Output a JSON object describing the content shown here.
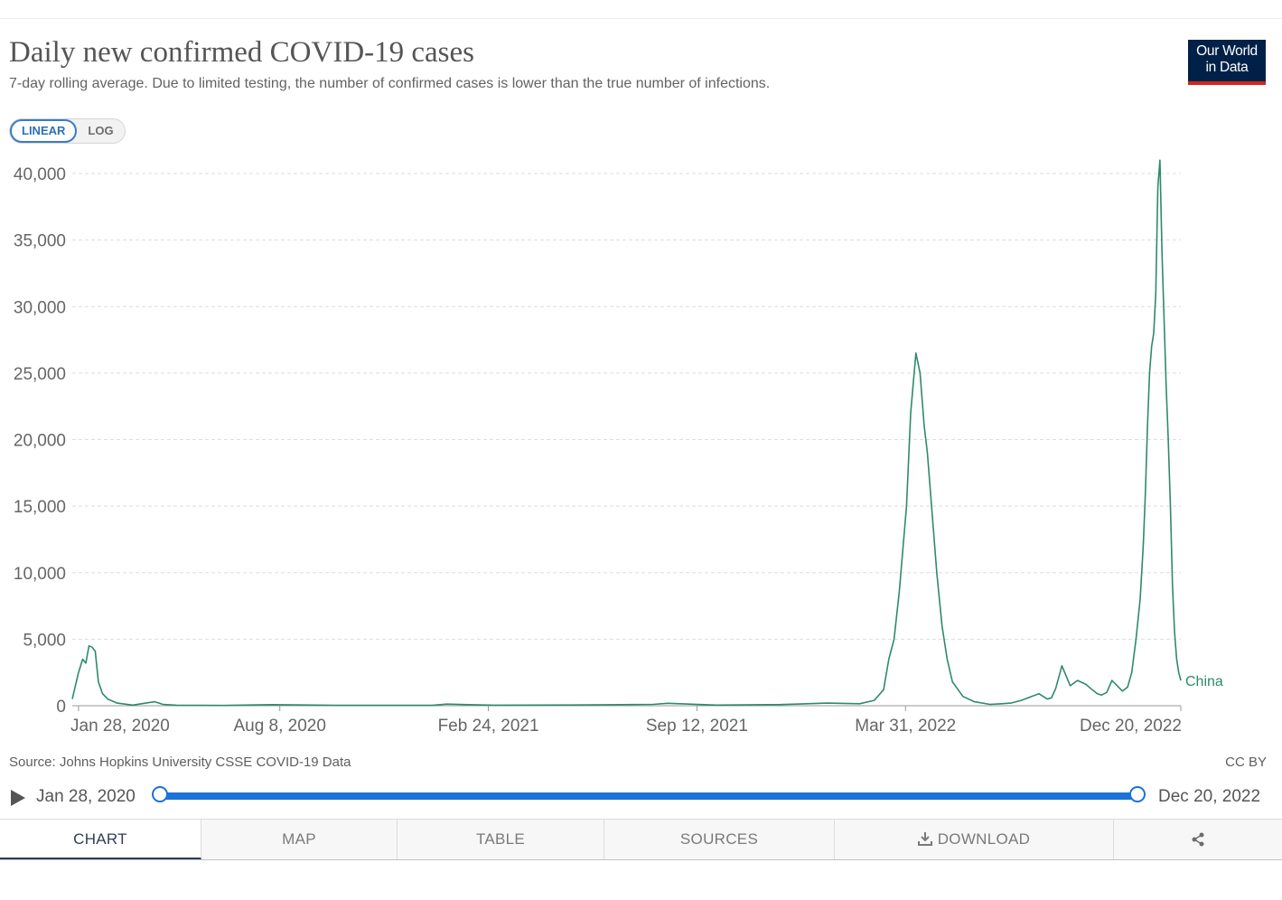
{
  "header": {
    "title": "Daily new confirmed COVID-19 cases",
    "subtitle": "7-day rolling average. Due to limited testing, the number of confirmed cases is lower than the true number of infections.",
    "logo_line1": "Our World",
    "logo_line2": "in Data"
  },
  "scale_toggle": {
    "linear": "LINEAR",
    "log": "LOG",
    "selected": "LINEAR"
  },
  "footer": {
    "source": "Source: Johns Hopkins University CSSE COVID-19 Data",
    "license": "CC BY"
  },
  "timeline": {
    "start": "Jan 28, 2020",
    "end": "Dec 20, 2022"
  },
  "tabs": {
    "chart": "CHART",
    "map": "MAP",
    "table": "TABLE",
    "sources": "SOURCES",
    "download": "DOWNLOAD",
    "share_icon": "share-icon",
    "download_icon": "download-icon"
  },
  "colors": {
    "series": "#2e8a6a",
    "accent": "#1a73d6",
    "logo_bg": "#002147",
    "logo_bar": "#ce261e"
  },
  "chart_data": {
    "type": "line",
    "ylim": [
      0,
      40000
    ],
    "yticks": [
      0,
      5000,
      10000,
      15000,
      20000,
      25000,
      30000,
      35000,
      40000
    ],
    "ytick_labels": [
      "0",
      "5,000",
      "10,000",
      "15,000",
      "20,000",
      "25,000",
      "30,000",
      "35,000",
      "40,000"
    ],
    "xlim": [
      "2020-01-22",
      "2022-12-20"
    ],
    "xticks": [
      "2020-01-28",
      "2020-08-08",
      "2021-02-24",
      "2021-09-12",
      "2022-03-31",
      "2022-12-20"
    ],
    "xtick_labels": [
      "Jan 28, 2020",
      "Aug 8, 2020",
      "Feb 24, 2021",
      "Sep 12, 2021",
      "Mar 31, 2022",
      "Dec 20, 2022"
    ],
    "grid": true,
    "series": [
      {
        "name": "China",
        "x": [
          "2020-01-22",
          "2020-01-28",
          "2020-02-01",
          "2020-02-04",
          "2020-02-07",
          "2020-02-10",
          "2020-02-13",
          "2020-02-16",
          "2020-02-20",
          "2020-02-25",
          "2020-03-05",
          "2020-03-20",
          "2020-04-10",
          "2020-04-18",
          "2020-05-01",
          "2020-06-15",
          "2020-08-01",
          "2020-10-01",
          "2021-01-01",
          "2021-01-15",
          "2021-03-01",
          "2021-06-01",
          "2021-08-01",
          "2021-08-15",
          "2021-10-01",
          "2021-12-01",
          "2022-01-15",
          "2022-02-15",
          "2022-03-01",
          "2022-03-10",
          "2022-03-15",
          "2022-03-20",
          "2022-03-25",
          "2022-04-01",
          "2022-04-05",
          "2022-04-10",
          "2022-04-14",
          "2022-04-18",
          "2022-04-21",
          "2022-04-25",
          "2022-04-30",
          "2022-05-05",
          "2022-05-10",
          "2022-05-15",
          "2022-05-25",
          "2022-06-05",
          "2022-06-20",
          "2022-07-01",
          "2022-07-10",
          "2022-07-20",
          "2022-07-30",
          "2022-08-06",
          "2022-08-10",
          "2022-08-14",
          "2022-08-18",
          "2022-08-22",
          "2022-08-28",
          "2022-09-05",
          "2022-09-12",
          "2022-09-20",
          "2022-09-26",
          "2022-10-01",
          "2022-10-05",
          "2022-10-10",
          "2022-10-15",
          "2022-10-20",
          "2022-10-25",
          "2022-10-30",
          "2022-11-03",
          "2022-11-07",
          "2022-11-11",
          "2022-11-14",
          "2022-11-16",
          "2022-11-18",
          "2022-11-20",
          "2022-11-22",
          "2022-11-24",
          "2022-11-26",
          "2022-11-28",
          "2022-11-30",
          "2022-12-02",
          "2022-12-04",
          "2022-12-06",
          "2022-12-08",
          "2022-12-10",
          "2022-12-12",
          "2022-12-14",
          "2022-12-16",
          "2022-12-18",
          "2022-12-20"
        ],
        "y": [
          500,
          2500,
          3500,
          3200,
          4500,
          4400,
          4100,
          1800,
          900,
          500,
          200,
          50,
          300,
          100,
          40,
          20,
          80,
          30,
          30,
          120,
          40,
          60,
          100,
          180,
          50,
          90,
          200,
          150,
          400,
          1200,
          3500,
          5000,
          8500,
          15000,
          22000,
          26500,
          25000,
          21000,
          19000,
          15000,
          10000,
          6000,
          3500,
          1800,
          700,
          300,
          100,
          150,
          200,
          400,
          700,
          900,
          700,
          500,
          600,
          1300,
          3000,
          1500,
          1900,
          1600,
          1200,
          900,
          800,
          1000,
          1900,
          1500,
          1100,
          1400,
          2500,
          5000,
          8000,
          12000,
          16000,
          21000,
          25000,
          27000,
          28000,
          31000,
          39000,
          41000,
          34000,
          29000,
          24000,
          20000,
          15000,
          9000,
          5500,
          3500,
          2500,
          1900
        ]
      }
    ]
  }
}
